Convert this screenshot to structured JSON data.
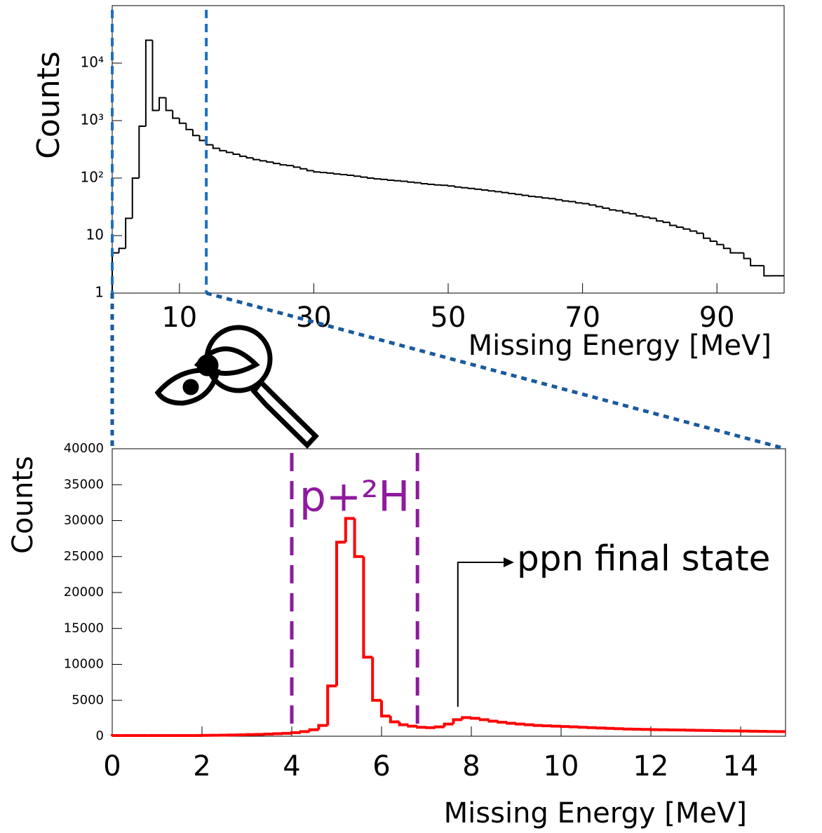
{
  "chart_data": [
    {
      "type": "histogram",
      "log_y": true,
      "color": "#000000",
      "xlabel": "Missing Energy [MeV]",
      "ylabel": "Counts",
      "bins": [
        0,
        1,
        2,
        3,
        4,
        5,
        6,
        7,
        8,
        9,
        10,
        11,
        12,
        13,
        14,
        15,
        16,
        17,
        18,
        19,
        20,
        21,
        22,
        23,
        24,
        25,
        26,
        27,
        28,
        29,
        30,
        31,
        32,
        33,
        34,
        35,
        36,
        37,
        38,
        39,
        40,
        41,
        42,
        43,
        44,
        45,
        46,
        47,
        48,
        49,
        50,
        51,
        52,
        53,
        54,
        55,
        56,
        57,
        58,
        59,
        60,
        61,
        62,
        63,
        64,
        65,
        66,
        67,
        68,
        69,
        70,
        71,
        72,
        73,
        74,
        75,
        76,
        77,
        78,
        79,
        80,
        81,
        82,
        83,
        84,
        85,
        86,
        87,
        88,
        89,
        90,
        91,
        92,
        93,
        94,
        95,
        96,
        97,
        98,
        99,
        100
      ],
      "values": [
        5,
        6,
        20,
        100,
        800,
        25000,
        1500,
        2500,
        1500,
        1100,
        900,
        700,
        550,
        450,
        380,
        330,
        300,
        280,
        260,
        240,
        225,
        210,
        200,
        190,
        180,
        170,
        165,
        155,
        145,
        135,
        128,
        125,
        122,
        118,
        115,
        112,
        108,
        104,
        100,
        97,
        95,
        92,
        90,
        88,
        85,
        83,
        80,
        78,
        76,
        75,
        73,
        70,
        68,
        66,
        64,
        62,
        60,
        58,
        56,
        54,
        52,
        50,
        48,
        47,
        45,
        44,
        42,
        40,
        39,
        37,
        36,
        34,
        32,
        30,
        28,
        27,
        25,
        24,
        22,
        21,
        20,
        18,
        17,
        15,
        14,
        13,
        12,
        11,
        9,
        8,
        7,
        6,
        5,
        5,
        4,
        3,
        3,
        2,
        2,
        2
      ],
      "xlim": [
        0,
        100
      ],
      "xticks": [
        10,
        30,
        50,
        70,
        90
      ],
      "ylim": [
        1,
        100000
      ],
      "yticks": [
        1,
        10,
        {
          "value": 100,
          "label": "10²"
        },
        {
          "value": 1000,
          "label": "10³"
        },
        {
          "value": 10000,
          "label": "10⁴"
        }
      ],
      "zoom_markers": [
        0,
        14
      ],
      "zoom_color": "#1f6fc0"
    },
    {
      "type": "histogram",
      "log_y": false,
      "color": "#ff0000",
      "xlabel": "Missing Energy [MeV]",
      "ylabel": "Counts",
      "bins": [
        0,
        0.2,
        0.4,
        0.6,
        0.8,
        1,
        1.2,
        1.4,
        1.6,
        1.8,
        2,
        2.2,
        2.4,
        2.6,
        2.8,
        3,
        3.2,
        3.4,
        3.6,
        3.8,
        4,
        4.2,
        4.4,
        4.6,
        4.8,
        5,
        5.2,
        5.4,
        5.6,
        5.8,
        6,
        6.2,
        6.4,
        6.6,
        6.8,
        7,
        7.2,
        7.4,
        7.6,
        7.8,
        8,
        8.2,
        8.4,
        8.6,
        8.8,
        9,
        9.2,
        9.4,
        9.6,
        9.8,
        10,
        10.2,
        10.4,
        10.6,
        10.8,
        11,
        11.2,
        11.4,
        11.6,
        11.8,
        12,
        12.2,
        12.4,
        12.6,
        12.8,
        13,
        13.2,
        13.4,
        13.6,
        13.8,
        14,
        14.2,
        14.4,
        14.6,
        14.8,
        15
      ],
      "values": [
        100,
        100,
        100,
        100,
        100,
        100,
        100,
        100,
        100,
        100,
        120,
        130,
        150,
        170,
        200,
        230,
        260,
        300,
        350,
        400,
        500,
        650,
        900,
        1500,
        7000,
        27000,
        30300,
        25000,
        11000,
        5000,
        2800,
        2000,
        1600,
        1400,
        1250,
        1200,
        1300,
        1700,
        2300,
        2600,
        2500,
        2300,
        2100,
        1950,
        1800,
        1700,
        1600,
        1500,
        1450,
        1400,
        1350,
        1300,
        1250,
        1200,
        1150,
        1100,
        1050,
        1000,
        980,
        950,
        920,
        900,
        880,
        860,
        840,
        820,
        800,
        780,
        760,
        740,
        720,
        700,
        680,
        660,
        650
      ],
      "xlim": [
        0,
        15
      ],
      "xticks": [
        0,
        2,
        4,
        6,
        8,
        10,
        12,
        14
      ],
      "ylim": [
        0,
        40000
      ],
      "yticks": [
        0,
        5000,
        10000,
        15000,
        20000,
        25000,
        30000,
        35000,
        40000
      ],
      "cut_lines": [
        4,
        6.8
      ],
      "cut_color": "#8e1a9e",
      "cut_label": "p+²H",
      "annotation": {
        "text": "ppn final state",
        "x": 7.7
      }
    }
  ]
}
